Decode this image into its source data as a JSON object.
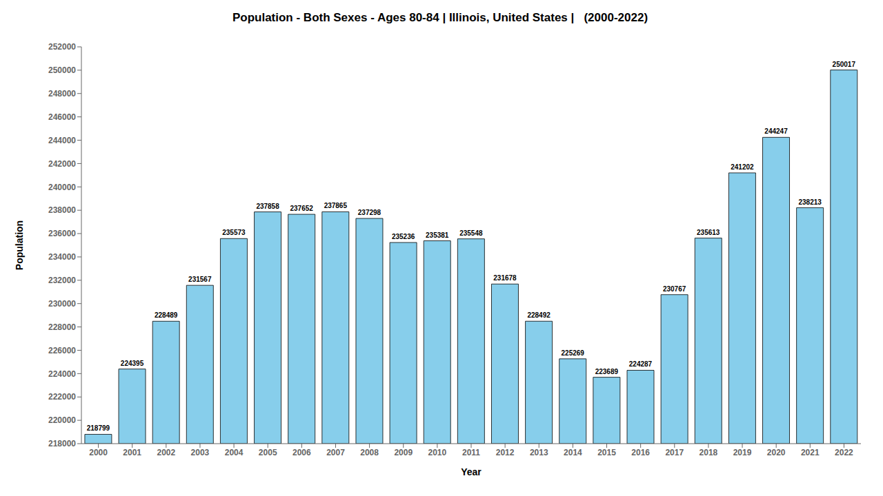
{
  "chart_data": {
    "type": "bar",
    "title": "Population - Both Sexes - Ages 80-84 | Illinois, United States |   (2000-2022)",
    "x_label": "Year",
    "y_label": "Population",
    "categories": [
      "2000",
      "2001",
      "2002",
      "2003",
      "2004",
      "2005",
      "2006",
      "2007",
      "2008",
      "2009",
      "2010",
      "2011",
      "2012",
      "2013",
      "2014",
      "2015",
      "2016",
      "2017",
      "2018",
      "2019",
      "2020",
      "2021",
      "2022"
    ],
    "values": [
      218799,
      224395,
      228489,
      231567,
      235573,
      237858,
      237652,
      237865,
      237298,
      235236,
      235381,
      235548,
      231678,
      228492,
      225269,
      223689,
      224287,
      230767,
      235613,
      241202,
      244247,
      238213,
      250017
    ],
    "color": "#87CEEB",
    "ylim": [
      218000,
      252000
    ],
    "yticks": [
      218000,
      220000,
      222000,
      224000,
      226000,
      228000,
      230000,
      232000,
      234000,
      236000,
      238000,
      240000,
      242000,
      244000,
      246000,
      248000,
      250000,
      252000
    ],
    "grid": false,
    "data_labels": true
  }
}
